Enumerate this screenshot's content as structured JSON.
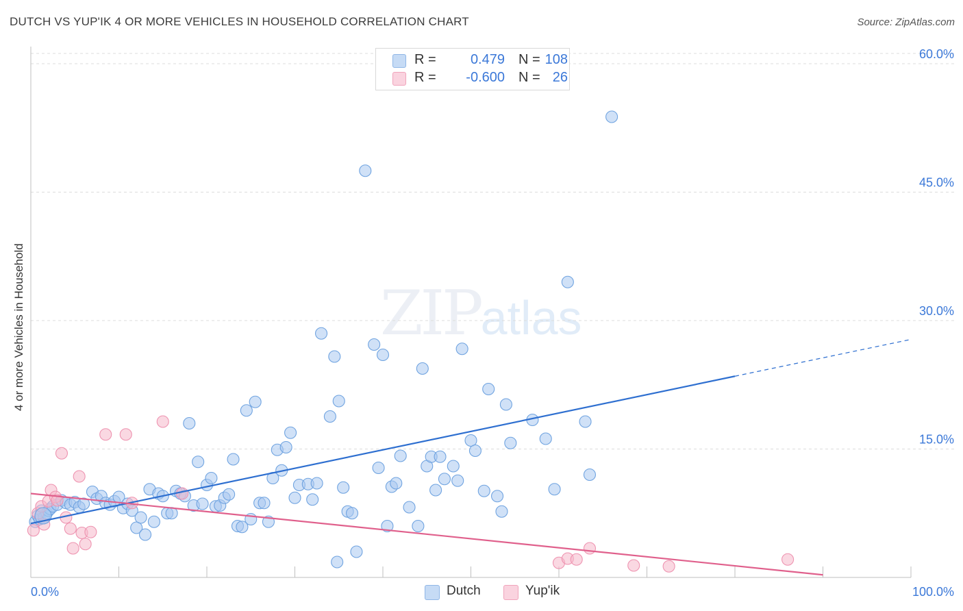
{
  "title": "DUTCH VS YUP'IK 4 OR MORE VEHICLES IN HOUSEHOLD CORRELATION CHART",
  "source": "Source: ZipAtlas.com",
  "watermark": {
    "zip": "ZIP",
    "atlas": "atlas"
  },
  "legend": {
    "r_label": "R =",
    "n_label": "N =",
    "dutch": {
      "r": "0.479",
      "n": "108",
      "color": "#a9c9f0"
    },
    "yupik": {
      "r": "-0.600",
      "n": "26",
      "color": "#f5b8cb"
    }
  },
  "chart_data": {
    "type": "scatter",
    "title": "DUTCH VS YUP'IK 4 OR MORE VEHICLES IN HOUSEHOLD CORRELATION CHART",
    "xlabel": "",
    "ylabel": "4 or more Vehicles in Household",
    "xlim": [
      0,
      100
    ],
    "ylim": [
      0,
      62
    ],
    "x_tick_labels": [
      "0.0%",
      "100.0%"
    ],
    "y_ticks": [
      15,
      30,
      45,
      60
    ],
    "y_tick_labels": [
      "15.0%",
      "30.0%",
      "45.0%",
      "60.0%"
    ],
    "grid": true,
    "legend_placement": "top-center",
    "series": [
      {
        "name": "Dutch",
        "color": "#6fa3e0",
        "fill": "#a9c9f0",
        "trend": {
          "x0": 0,
          "y0": 6.3,
          "x1": 80,
          "y1": 23.5,
          "x_dash_end": 100,
          "y_dash_end": 27.8,
          "color": "#2e6fd0"
        },
        "points": [
          [
            0.5,
            6.5
          ],
          [
            0.8,
            7.2
          ],
          [
            1.0,
            6.8
          ],
          [
            1.2,
            7.8
          ],
          [
            1.5,
            7.0
          ],
          [
            1.8,
            7.5
          ],
          [
            2.0,
            7.8
          ],
          [
            2.2,
            8.0
          ],
          [
            2.5,
            8.3
          ],
          [
            3.0,
            8.5
          ],
          [
            3.5,
            9.0
          ],
          [
            4.0,
            8.7
          ],
          [
            4.5,
            8.5
          ],
          [
            5.0,
            8.8
          ],
          [
            5.5,
            8.2
          ],
          [
            6.0,
            8.6
          ],
          [
            7.0,
            10.0
          ],
          [
            7.5,
            9.2
          ],
          [
            8.0,
            9.5
          ],
          [
            8.5,
            8.7
          ],
          [
            9.0,
            8.5
          ],
          [
            9.5,
            8.9
          ],
          [
            10.0,
            9.4
          ],
          [
            10.5,
            8.1
          ],
          [
            11.0,
            8.6
          ],
          [
            11.5,
            7.8
          ],
          [
            12.0,
            5.8
          ],
          [
            12.5,
            7.0
          ],
          [
            13.0,
            5.0
          ],
          [
            13.5,
            10.3
          ],
          [
            14.0,
            6.5
          ],
          [
            14.5,
            9.8
          ],
          [
            15.0,
            9.5
          ],
          [
            15.5,
            7.5
          ],
          [
            16.0,
            7.5
          ],
          [
            16.5,
            10.1
          ],
          [
            17.0,
            9.8
          ],
          [
            17.5,
            9.5
          ],
          [
            18.0,
            18.0
          ],
          [
            18.5,
            8.4
          ],
          [
            19.0,
            13.5
          ],
          [
            19.5,
            8.6
          ],
          [
            20.0,
            10.8
          ],
          [
            20.5,
            11.6
          ],
          [
            21.0,
            8.3
          ],
          [
            21.5,
            8.4
          ],
          [
            22.0,
            9.3
          ],
          [
            22.5,
            9.7
          ],
          [
            23.0,
            13.8
          ],
          [
            23.5,
            6.0
          ],
          [
            24.0,
            5.9
          ],
          [
            24.5,
            19.5
          ],
          [
            25.0,
            6.8
          ],
          [
            25.5,
            20.5
          ],
          [
            26.0,
            8.7
          ],
          [
            26.5,
            8.7
          ],
          [
            27.0,
            6.5
          ],
          [
            27.5,
            11.6
          ],
          [
            28.0,
            14.9
          ],
          [
            28.5,
            12.5
          ],
          [
            29.0,
            15.2
          ],
          [
            29.5,
            16.9
          ],
          [
            30.0,
            9.3
          ],
          [
            30.5,
            10.8
          ],
          [
            31.5,
            10.9
          ],
          [
            32.0,
            9.1
          ],
          [
            32.5,
            11.0
          ],
          [
            33.0,
            28.5
          ],
          [
            34.0,
            18.8
          ],
          [
            34.5,
            25.8
          ],
          [
            35.0,
            20.6
          ],
          [
            35.5,
            10.5
          ],
          [
            36.0,
            7.7
          ],
          [
            36.5,
            7.5
          ],
          [
            37.0,
            3.0
          ],
          [
            38.0,
            47.5
          ],
          [
            39.0,
            27.2
          ],
          [
            39.5,
            12.8
          ],
          [
            40.0,
            26.0
          ],
          [
            40.5,
            6.0
          ],
          [
            41.0,
            10.6
          ],
          [
            41.5,
            11.0
          ],
          [
            42.0,
            14.2
          ],
          [
            43.0,
            8.2
          ],
          [
            44.0,
            6.0
          ],
          [
            44.5,
            24.4
          ],
          [
            45.0,
            13.0
          ],
          [
            45.5,
            14.1
          ],
          [
            46.0,
            10.2
          ],
          [
            46.5,
            14.1
          ],
          [
            47.0,
            11.5
          ],
          [
            48.0,
            13.0
          ],
          [
            48.5,
            11.3
          ],
          [
            49.0,
            26.7
          ],
          [
            50.0,
            16.0
          ],
          [
            50.5,
            14.8
          ],
          [
            51.5,
            10.1
          ],
          [
            52.0,
            22.0
          ],
          [
            53.0,
            9.5
          ],
          [
            53.5,
            7.7
          ],
          [
            54.0,
            20.2
          ],
          [
            54.5,
            15.7
          ],
          [
            57.0,
            18.4
          ],
          [
            58.5,
            16.2
          ],
          [
            59.5,
            10.3
          ],
          [
            61.0,
            34.5
          ],
          [
            63.0,
            18.2
          ],
          [
            63.5,
            12.0
          ],
          [
            66.0,
            53.8
          ],
          [
            34.8,
            1.8
          ]
        ]
      },
      {
        "name": "Yup'ik",
        "color": "#ee93b0",
        "fill": "#f5b8cb",
        "trend": {
          "x0": 0,
          "y0": 9.8,
          "x1": 90,
          "y1": 0.3,
          "color": "#e0608c"
        },
        "points": [
          [
            0.3,
            5.5
          ],
          [
            0.8,
            7.5
          ],
          [
            1.2,
            8.3
          ],
          [
            1.5,
            6.2
          ],
          [
            2.0,
            8.9
          ],
          [
            2.3,
            10.2
          ],
          [
            2.8,
            9.4
          ],
          [
            3.0,
            9.0
          ],
          [
            3.5,
            14.5
          ],
          [
            4.0,
            7.0
          ],
          [
            4.5,
            5.7
          ],
          [
            4.8,
            3.4
          ],
          [
            5.5,
            11.8
          ],
          [
            5.8,
            5.2
          ],
          [
            6.2,
            3.9
          ],
          [
            6.8,
            5.3
          ],
          [
            8.5,
            16.7
          ],
          [
            10.8,
            16.7
          ],
          [
            11.5,
            8.7
          ],
          [
            15.0,
            18.2
          ],
          [
            17.2,
            9.8
          ],
          [
            60.0,
            1.7
          ],
          [
            61.0,
            2.2
          ],
          [
            62.0,
            2.1
          ],
          [
            63.5,
            3.4
          ],
          [
            68.5,
            1.4
          ],
          [
            72.5,
            1.3
          ],
          [
            86.0,
            2.1
          ]
        ]
      }
    ]
  }
}
